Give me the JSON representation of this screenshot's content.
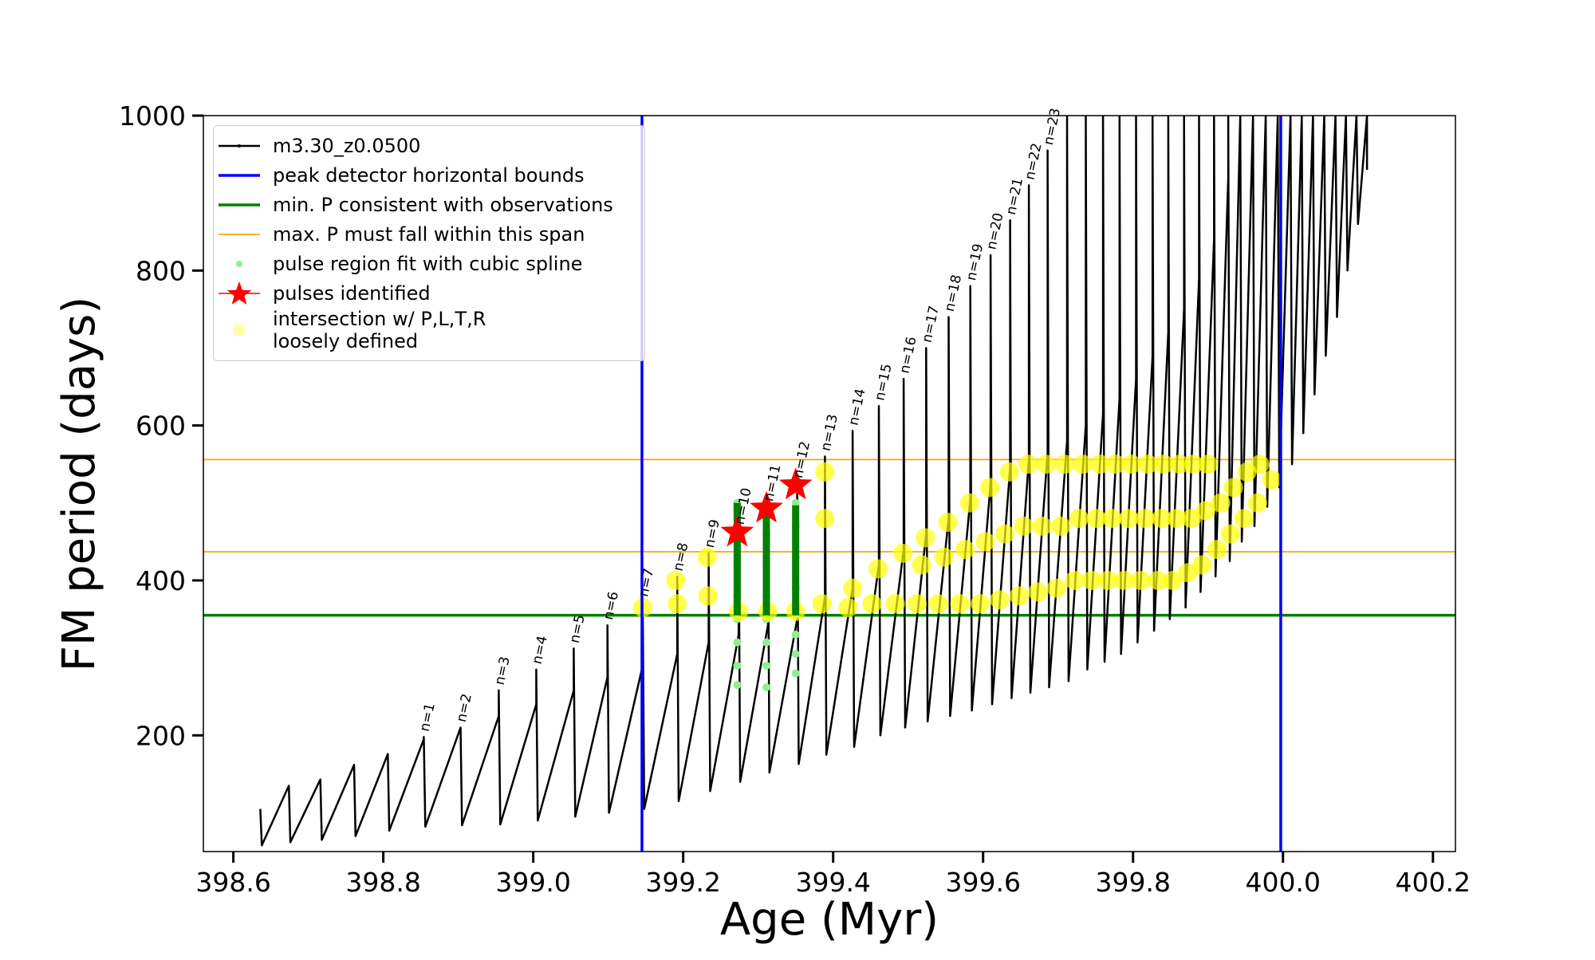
{
  "chart_data": {
    "type": "line",
    "x_label": "Age (Myr)",
    "y_label": "FM period (days)",
    "xlim": [
      398.56,
      400.23
    ],
    "ylim": [
      50,
      1000
    ],
    "xticks": [
      398.6,
      398.8,
      {
        "value": 399,
        "label": "399.0"
      },
      399.2,
      399.4,
      399.6,
      399.8,
      {
        "value": 400,
        "label": "400.0"
      },
      400.2
    ],
    "yticks": [
      200,
      400,
      600,
      800,
      1000
    ],
    "legend": "upper left",
    "series": [
      {
        "kind": "line",
        "name": "m3.30_z0.0500",
        "color": "#000000",
        "linewidth": 2.5,
        "x": [
          398.636,
          398.638,
          398.674,
          398.674,
          398.676,
          398.716,
          398.716,
          398.718,
          398.761,
          398.761,
          398.763,
          398.806,
          398.806,
          398.808,
          398.854,
          398.854,
          398.856,
          398.903,
          398.903,
          398.905,
          398.954,
          398.954,
          398.956,
          399.004,
          399.004,
          399.006,
          399.054,
          399.054,
          399.056,
          399.099,
          399.099,
          399.101,
          399.146,
          399.146,
          399.148,
          399.192,
          399.192,
          399.194,
          399.234,
          399.234,
          399.236,
          399.274,
          399.274,
          399.276,
          399.313,
          399.313,
          399.315,
          399.352,
          399.352,
          399.354,
          399.389,
          399.389,
          399.391,
          399.426,
          399.426,
          399.428,
          399.461,
          399.461,
          399.463,
          399.494,
          399.494,
          399.496,
          399.524,
          399.524,
          399.526,
          399.554,
          399.554,
          399.556,
          399.583,
          399.583,
          399.585,
          399.61,
          399.61,
          399.612,
          399.636,
          399.636,
          399.638,
          399.661,
          399.661,
          399.663,
          399.686,
          399.686,
          399.688,
          399.712,
          399.712,
          399.714,
          399.737,
          399.737,
          399.739,
          399.76,
          399.76,
          399.762,
          399.782,
          399.782,
          399.784,
          399.804,
          399.804,
          399.806,
          399.826,
          399.826,
          399.828,
          399.847,
          399.847,
          399.849,
          399.868,
          399.868,
          399.87,
          399.888,
          399.888,
          399.89,
          399.908,
          399.908,
          399.91,
          399.927,
          399.927,
          399.929,
          399.943,
          399.943,
          399.945,
          399.96,
          399.96,
          399.962,
          399.977,
          399.977,
          399.979,
          399.993,
          399.993,
          399.995,
          400.01,
          400.01,
          400.012,
          400.025,
          400.025,
          400.027,
          400.04,
          400.04,
          400.042,
          400.055,
          400.055,
          400.057,
          400.07,
          400.07,
          400.072,
          400.084,
          400.084,
          400.086,
          400.098,
          400.098,
          400.1,
          400.112,
          400.112
        ],
        "values": [
          105,
          58,
          135,
          135,
          62,
          143,
          143,
          65,
          162,
          162,
          70,
          176,
          176,
          77,
          195,
          198,
          82,
          210,
          210,
          84,
          225,
          258,
          85,
          240,
          285,
          90,
          258,
          312,
          95,
          275,
          342,
          100,
          290,
          372,
          105,
          305,
          405,
          115,
          320,
          435,
          128,
          330,
          465,
          140,
          342,
          495,
          152,
          350,
          525,
          163,
          378,
          560,
          175,
          390,
          593,
          185,
          420,
          625,
          200,
          440,
          660,
          210,
          460,
          700,
          218,
          480,
          740,
          225,
          505,
          780,
          232,
          525,
          820,
          240,
          545,
          865,
          248,
          555,
          910,
          255,
          565,
          955,
          262,
          580,
          1000,
          270,
          600,
          1000,
          285,
          615,
          1000,
          295,
          635,
          1000,
          305,
          660,
          1000,
          320,
          690,
          1000,
          335,
          720,
          1000,
          350,
          750,
          1000,
          365,
          790,
          1000,
          385,
          840,
          1000,
          405,
          920,
          1000,
          425,
          1000,
          1000,
          450,
          1000,
          1000,
          470,
          1000,
          1000,
          495,
          1000,
          1000,
          520,
          1000,
          1000,
          550,
          1000,
          1000,
          590,
          1000,
          1000,
          640,
          1000,
          1000,
          690,
          1000,
          1000,
          740,
          1000,
          1000,
          800,
          1000,
          1000,
          860,
          1000,
          930
        ]
      },
      {
        "kind": "vline",
        "name": "peak detector horizontal bounds",
        "color": "#0000ff",
        "linewidth": 3.5,
        "x": [
          399.145,
          399.997
        ]
      },
      {
        "kind": "hline",
        "name": "min. P consistent with observations",
        "color": "#008000",
        "linewidth": 3.5,
        "values": [
          355
        ]
      },
      {
        "kind": "hline",
        "name": "max. P must fall within this span",
        "color": "#ffa500",
        "linewidth": 1.8,
        "values": [
          437,
          556
        ]
      },
      {
        "kind": "scatter",
        "name": "pulse region fit with cubic spline",
        "color": "#90ee90",
        "x": [
          399.272,
          399.272,
          399.272,
          399.272,
          399.272,
          399.272,
          399.272,
          399.272,
          399.311,
          399.311,
          399.311,
          399.311,
          399.311,
          399.311,
          399.311,
          399.311,
          399.35,
          399.35,
          399.35,
          399.35,
          399.35,
          399.35,
          399.35,
          399.35
        ],
        "values": [
          265,
          290,
          320,
          350,
          380,
          420,
          460,
          500,
          262,
          290,
          320,
          350,
          380,
          420,
          460,
          500,
          280,
          305,
          330,
          355,
          390,
          430,
          470,
          500
        ]
      },
      {
        "kind": "star",
        "name": "pulses identified",
        "color": "#ff0000",
        "x": [
          399.272,
          399.311,
          399.35
        ],
        "values": [
          462,
          493,
          523
        ]
      },
      {
        "kind": "scatter",
        "name": "intersection w/ P,L,T,R\nloosely defined",
        "color": "#ffff00",
        "x": [
          399.146,
          399.19,
          399.192,
          399.232,
          399.233,
          399.274,
          399.313,
          399.35,
          399.385,
          399.389,
          399.389,
          399.42,
          399.426,
          399.452,
          399.46,
          399.483,
          399.493,
          399.512,
          399.518,
          399.523,
          399.54,
          399.548,
          399.553,
          399.569,
          399.576,
          399.582,
          399.596,
          399.603,
          399.609,
          399.622,
          399.629,
          399.635,
          399.648,
          399.654,
          399.66,
          399.673,
          399.679,
          399.684,
          399.698,
          399.704,
          399.709,
          399.722,
          399.728,
          399.733,
          399.745,
          399.751,
          399.756,
          399.766,
          399.772,
          399.777,
          399.788,
          399.794,
          399.798,
          399.81,
          399.816,
          399.82,
          399.833,
          399.838,
          399.841,
          399.853,
          399.858,
          399.862,
          399.873,
          399.878,
          399.881,
          399.892,
          399.897,
          399.9,
          399.912,
          399.917,
          399.93,
          399.934,
          399.948,
          399.952,
          399.966,
          399.969,
          399.985
        ],
        "values": [
          365,
          400,
          370,
          430,
          380,
          360,
          360,
          360,
          370,
          480,
          540,
          365,
          390,
          370,
          415,
          370,
          435,
          370,
          420,
          455,
          370,
          430,
          475,
          370,
          440,
          500,
          370,
          450,
          520,
          375,
          460,
          540,
          380,
          470,
          550,
          385,
          470,
          550,
          390,
          470,
          550,
          400,
          480,
          550,
          400,
          480,
          550,
          400,
          480,
          550,
          400,
          480,
          550,
          400,
          480,
          550,
          400,
          480,
          550,
          400,
          480,
          550,
          410,
          480,
          550,
          420,
          490,
          550,
          440,
          500,
          460,
          520,
          480,
          540,
          500,
          550,
          530
        ]
      },
      {
        "kind": "segment",
        "color": "#008000",
        "linewidth": 9,
        "x": [
          399.272,
          399.272,
          399.273,
          399.311,
          399.311,
          399.312,
          399.35,
          399.35
        ],
        "values": [
          355,
          500,
          null,
          355,
          500,
          null,
          355,
          497
        ]
      }
    ],
    "annotations": [
      {
        "text": "n=1",
        "x": 398.854,
        "y": 198
      },
      {
        "text": "n=2",
        "x": 398.903,
        "y": 210
      },
      {
        "text": "n=3",
        "x": 398.954,
        "y": 258
      },
      {
        "text": "n=4",
        "x": 399.004,
        "y": 285
      },
      {
        "text": "n=5",
        "x": 399.054,
        "y": 312
      },
      {
        "text": "n=6",
        "x": 399.099,
        "y": 342
      },
      {
        "text": "n=7",
        "x": 399.146,
        "y": 372
      },
      {
        "text": "n=8",
        "x": 399.192,
        "y": 405
      },
      {
        "text": "n=9",
        "x": 399.234,
        "y": 435
      },
      {
        "text": "n=10",
        "x": 399.274,
        "y": 465
      },
      {
        "text": "n=11",
        "x": 399.313,
        "y": 495
      },
      {
        "text": "n=12",
        "x": 399.352,
        "y": 525
      },
      {
        "text": "n=13",
        "x": 399.389,
        "y": 560
      },
      {
        "text": "n=14",
        "x": 399.426,
        "y": 593
      },
      {
        "text": "n=15",
        "x": 399.461,
        "y": 625
      },
      {
        "text": "n=16",
        "x": 399.494,
        "y": 660
      },
      {
        "text": "n=17",
        "x": 399.524,
        "y": 700
      },
      {
        "text": "n=18",
        "x": 399.554,
        "y": 740
      },
      {
        "text": "n=19",
        "x": 399.583,
        "y": 780
      },
      {
        "text": "n=20",
        "x": 399.61,
        "y": 820
      },
      {
        "text": "n=21",
        "x": 399.636,
        "y": 865
      },
      {
        "text": "n=22",
        "x": 399.661,
        "y": 910
      },
      {
        "text": "n=23",
        "x": 399.686,
        "y": 955
      }
    ]
  }
}
